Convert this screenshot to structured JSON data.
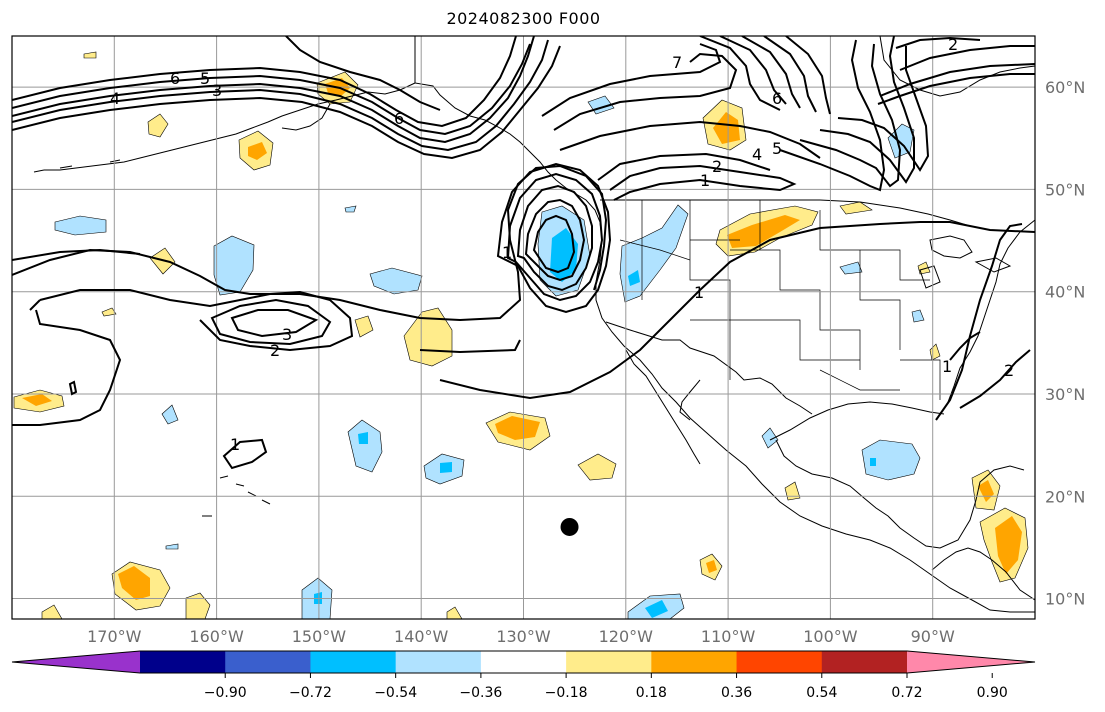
{
  "title": "2024082300 F000",
  "map": {
    "lon_range": [
      -180,
      -80
    ],
    "lat_range": [
      8,
      65
    ],
    "graticule_lons": [
      -170,
      -160,
      -150,
      -140,
      -130,
      -120,
      -110,
      -100,
      -90
    ],
    "graticule_lats": [
      10,
      20,
      30,
      40,
      50,
      60
    ],
    "lon_labels": [
      "170°W",
      "160°W",
      "150°W",
      "140°W",
      "130°W",
      "120°W",
      "110°W",
      "100°W",
      "90°W"
    ],
    "lat_labels": [
      "10°N",
      "20°N",
      "30°N",
      "40°N",
      "50°N",
      "60°N"
    ],
    "contour_labels": [
      "4",
      "6",
      "5",
      "3",
      "6",
      "2",
      "3",
      "1",
      "1",
      "1",
      "2",
      "4",
      "5",
      "6",
      "7",
      "2",
      "1",
      "1",
      "2"
    ],
    "storm_marker": {
      "lon": -125.5,
      "lat": 17.0
    }
  },
  "colorbar": {
    "ticks": [
      "−0.90",
      "−0.72",
      "−0.54",
      "−0.36",
      "−0.18",
      "0.18",
      "0.36",
      "0.54",
      "0.72",
      "0.90"
    ],
    "colors": [
      "#9932cc",
      "#00008b",
      "#3a5fcd",
      "#00bfff",
      "#b0e2ff",
      "#ffffff",
      "#ffec8b",
      "#ffa500",
      "#ff4500",
      "#b22222",
      "#ff88aa"
    ]
  },
  "colors": {
    "grid": "#999999",
    "land_outline": "#000000",
    "contour": "#000000"
  }
}
